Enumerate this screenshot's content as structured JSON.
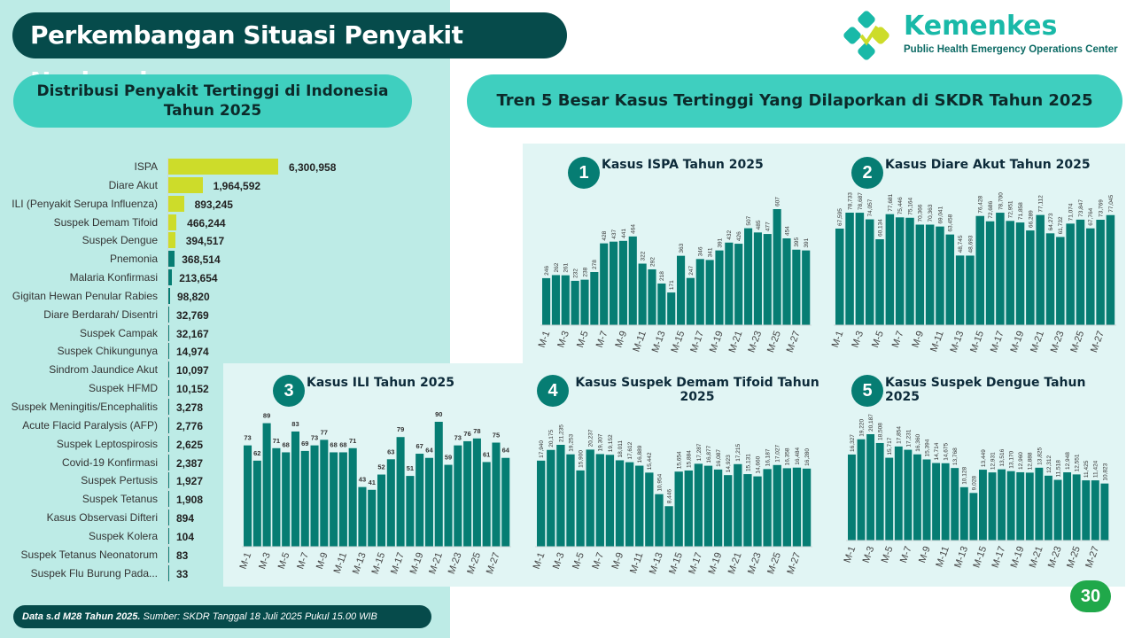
{
  "title": "Perkembangan Situasi Penyakit Nasional",
  "logo": {
    "name": "Kemenkes",
    "subtitle": "Public Health Emergency Operations Center"
  },
  "left_heading": "Distribusi Penyakit Tertinggi di Indonesia Tahun 2025",
  "right_heading": "Tren 5 Besar Kasus Tertinggi Yang Dilaporkan di SKDR Tahun 2025",
  "footer": {
    "bold": "Data s.d M28 Tahun 2025.",
    "rest": " Sumber: SKDR Tanggal 18 Juli 2025 Pukul 15.00 WIB"
  },
  "page_number": "30",
  "colors": {
    "top5": "#cddc2a",
    "other": "#067d73",
    "bar": "#067d73"
  },
  "chart_data": [
    {
      "type": "bar",
      "orientation": "horizontal",
      "title": "Distribusi Penyakit Tertinggi di Indonesia Tahun 2025",
      "categories": [
        "ISPA",
        "Diare Akut",
        "ILI (Penyakit Serupa Influenza)",
        "Suspek Demam Tifoid",
        "Suspek Dengue",
        "Pnemonia",
        "Malaria Konfirmasi",
        "Gigitan Hewan Penular Rabies",
        "Diare Berdarah/ Disentri",
        "Suspek Campak",
        "Suspek Chikungunya",
        "Sindrom Jaundice Akut",
        "Suspek HFMD",
        "Suspek Meningitis/Encephalitis",
        "Acute Flacid Paralysis (AFP)",
        "Suspek Leptospirosis",
        "Covid-19 Konfirmasi",
        "Suspek Pertusis",
        "Suspek Tetanus",
        "Kasus Observasi Difteri",
        "Suspek Kolera",
        "Suspek Tetanus Neonatorum",
        "Suspek Flu Burung Pada..."
      ],
      "values": [
        6300958,
        1964592,
        893245,
        466244,
        394517,
        368514,
        213654,
        98820,
        32769,
        32167,
        14974,
        10097,
        10152,
        3278,
        2776,
        2625,
        2387,
        1927,
        1908,
        894,
        104,
        83,
        33
      ],
      "labels": [
        "6,300,958",
        "1,964,592",
        "893,245",
        "466,244",
        "394,517",
        "368,514",
        "213,654",
        "98,820",
        "32,769",
        "32,167",
        "14,974",
        "10,097",
        "10,152",
        "3,278",
        "2,776",
        "2,625",
        "2,387",
        "1,927",
        "1,908",
        "894",
        "104",
        "83",
        "33"
      ]
    },
    {
      "type": "bar",
      "number": "1",
      "title": "Kasus ISPA Tahun 2025",
      "x_ticks": [
        "M-1",
        "M-3",
        "M-5",
        "M-7",
        "M-9",
        "M-11",
        "M-13",
        "M-15",
        "M-17",
        "M-19",
        "M-21",
        "M-23",
        "M-25",
        "M-27"
      ],
      "values": [
        246,
        262,
        261,
        232,
        238,
        278,
        428,
        437,
        441,
        464,
        322,
        292,
        218,
        171,
        363,
        247,
        346,
        341,
        391,
        432,
        426,
        507,
        485,
        477,
        607,
        454,
        395,
        391
      ]
    },
    {
      "type": "bar",
      "number": "2",
      "title": "Kasus Diare Akut Tahun 2025",
      "x_ticks": [
        "M-1",
        "M-3",
        "M-5",
        "M-7",
        "M-9",
        "M-11",
        "M-13",
        "M-15",
        "M-17",
        "M-19",
        "M-21",
        "M-23",
        "M-25",
        "M-27"
      ],
      "values": [
        67595,
        78733,
        78687,
        74057,
        60134,
        77681,
        75446,
        75164,
        70366,
        70363,
        69041,
        63458,
        48745,
        48693,
        76428,
        72686,
        78700,
        72951,
        71858,
        66289,
        77112,
        64273,
        61732,
        71074,
        73847,
        67764,
        73769,
        77045
      ]
    },
    {
      "type": "bar",
      "number": "3",
      "title": "Kasus ILI Tahun 2025",
      "x_ticks": [
        "M-1",
        "M-3",
        "M-5",
        "M-7",
        "M-9",
        "M-11",
        "M-13",
        "M-15",
        "M-17",
        "M-19",
        "M-21",
        "M-23",
        "M-25",
        "M-27"
      ],
      "values": [
        73,
        62,
        89,
        71,
        68,
        83,
        69,
        73,
        77,
        68,
        68,
        71,
        43,
        41,
        52,
        63,
        79,
        51,
        67,
        64,
        90,
        59,
        73,
        76,
        78,
        61,
        75,
        64
      ]
    },
    {
      "type": "bar",
      "number": "4",
      "title": "Kasus Suspek Demam Tifoid Tahun 2025",
      "x_ticks": [
        "M-1",
        "M-3",
        "M-5",
        "M-7",
        "M-9",
        "M-11",
        "M-13",
        "M-15",
        "M-17",
        "M-19",
        "M-21",
        "M-23",
        "M-25",
        "M-27"
      ],
      "values": [
        17940,
        20175,
        21235,
        19253,
        15900,
        20237,
        19307,
        19152,
        18011,
        17612,
        16889,
        15442,
        10954,
        8446,
        15654,
        15884,
        17287,
        16877,
        16087,
        14923,
        17215,
        15131,
        14660,
        16187,
        17027,
        16358,
        16484,
        16280
      ]
    },
    {
      "type": "bar",
      "number": "5",
      "title": "Kasus Suspek Dengue Tahun 2025",
      "x_ticks": [
        "M-1",
        "M-3",
        "M-5",
        "M-7",
        "M-9",
        "M-11",
        "M-13",
        "M-15",
        "M-17",
        "M-19",
        "M-21",
        "M-23",
        "M-25",
        "M-27"
      ],
      "values": [
        16327,
        19220,
        20187,
        18508,
        15717,
        17854,
        17231,
        16360,
        15394,
        14714,
        14675,
        13768,
        10128,
        9028,
        13449,
        12931,
        13516,
        13170,
        12960,
        12888,
        13825,
        12312,
        11518,
        12948,
        12551,
        11425,
        11424,
        10823
      ]
    }
  ]
}
